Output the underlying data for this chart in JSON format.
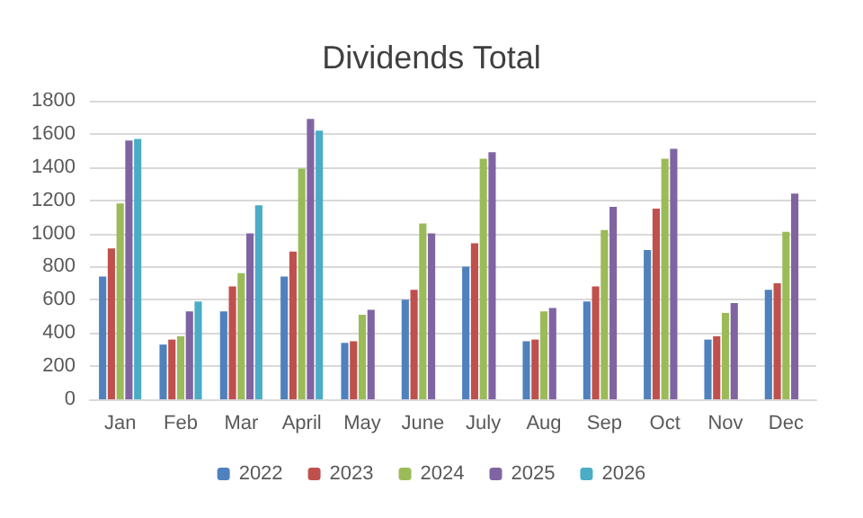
{
  "chart_data": {
    "type": "bar",
    "title": "Dividends Total",
    "categories": [
      "Jan",
      "Feb",
      "Mar",
      "April",
      "May",
      "June",
      "July",
      "Aug",
      "Sep",
      "Oct",
      "Nov",
      "Dec"
    ],
    "series": [
      {
        "name": "2022",
        "color": "#4f81bd",
        "values": [
          740,
          330,
          530,
          740,
          340,
          600,
          800,
          350,
          590,
          900,
          360,
          660
        ]
      },
      {
        "name": "2023",
        "color": "#c0504d",
        "values": [
          910,
          360,
          680,
          890,
          350,
          660,
          940,
          360,
          680,
          1150,
          380,
          700
        ]
      },
      {
        "name": "2024",
        "color": "#9bbb59",
        "values": [
          1180,
          380,
          760,
          1390,
          510,
          1060,
          1450,
          530,
          1020,
          1450,
          520,
          1010
        ]
      },
      {
        "name": "2025",
        "color": "#8064a2",
        "values": [
          1560,
          530,
          1000,
          1690,
          540,
          1000,
          1490,
          550,
          1160,
          1510,
          580,
          1240
        ]
      },
      {
        "name": "2026",
        "color": "#4bacc6",
        "values": [
          1570,
          590,
          1170,
          1620,
          null,
          null,
          null,
          null,
          null,
          null,
          null,
          null
        ]
      }
    ],
    "ylim": [
      0,
      1800
    ],
    "yticks": [
      0,
      200,
      400,
      600,
      800,
      1000,
      1200,
      1400,
      1600,
      1800
    ],
    "grid": "y",
    "legend": "bottom"
  }
}
